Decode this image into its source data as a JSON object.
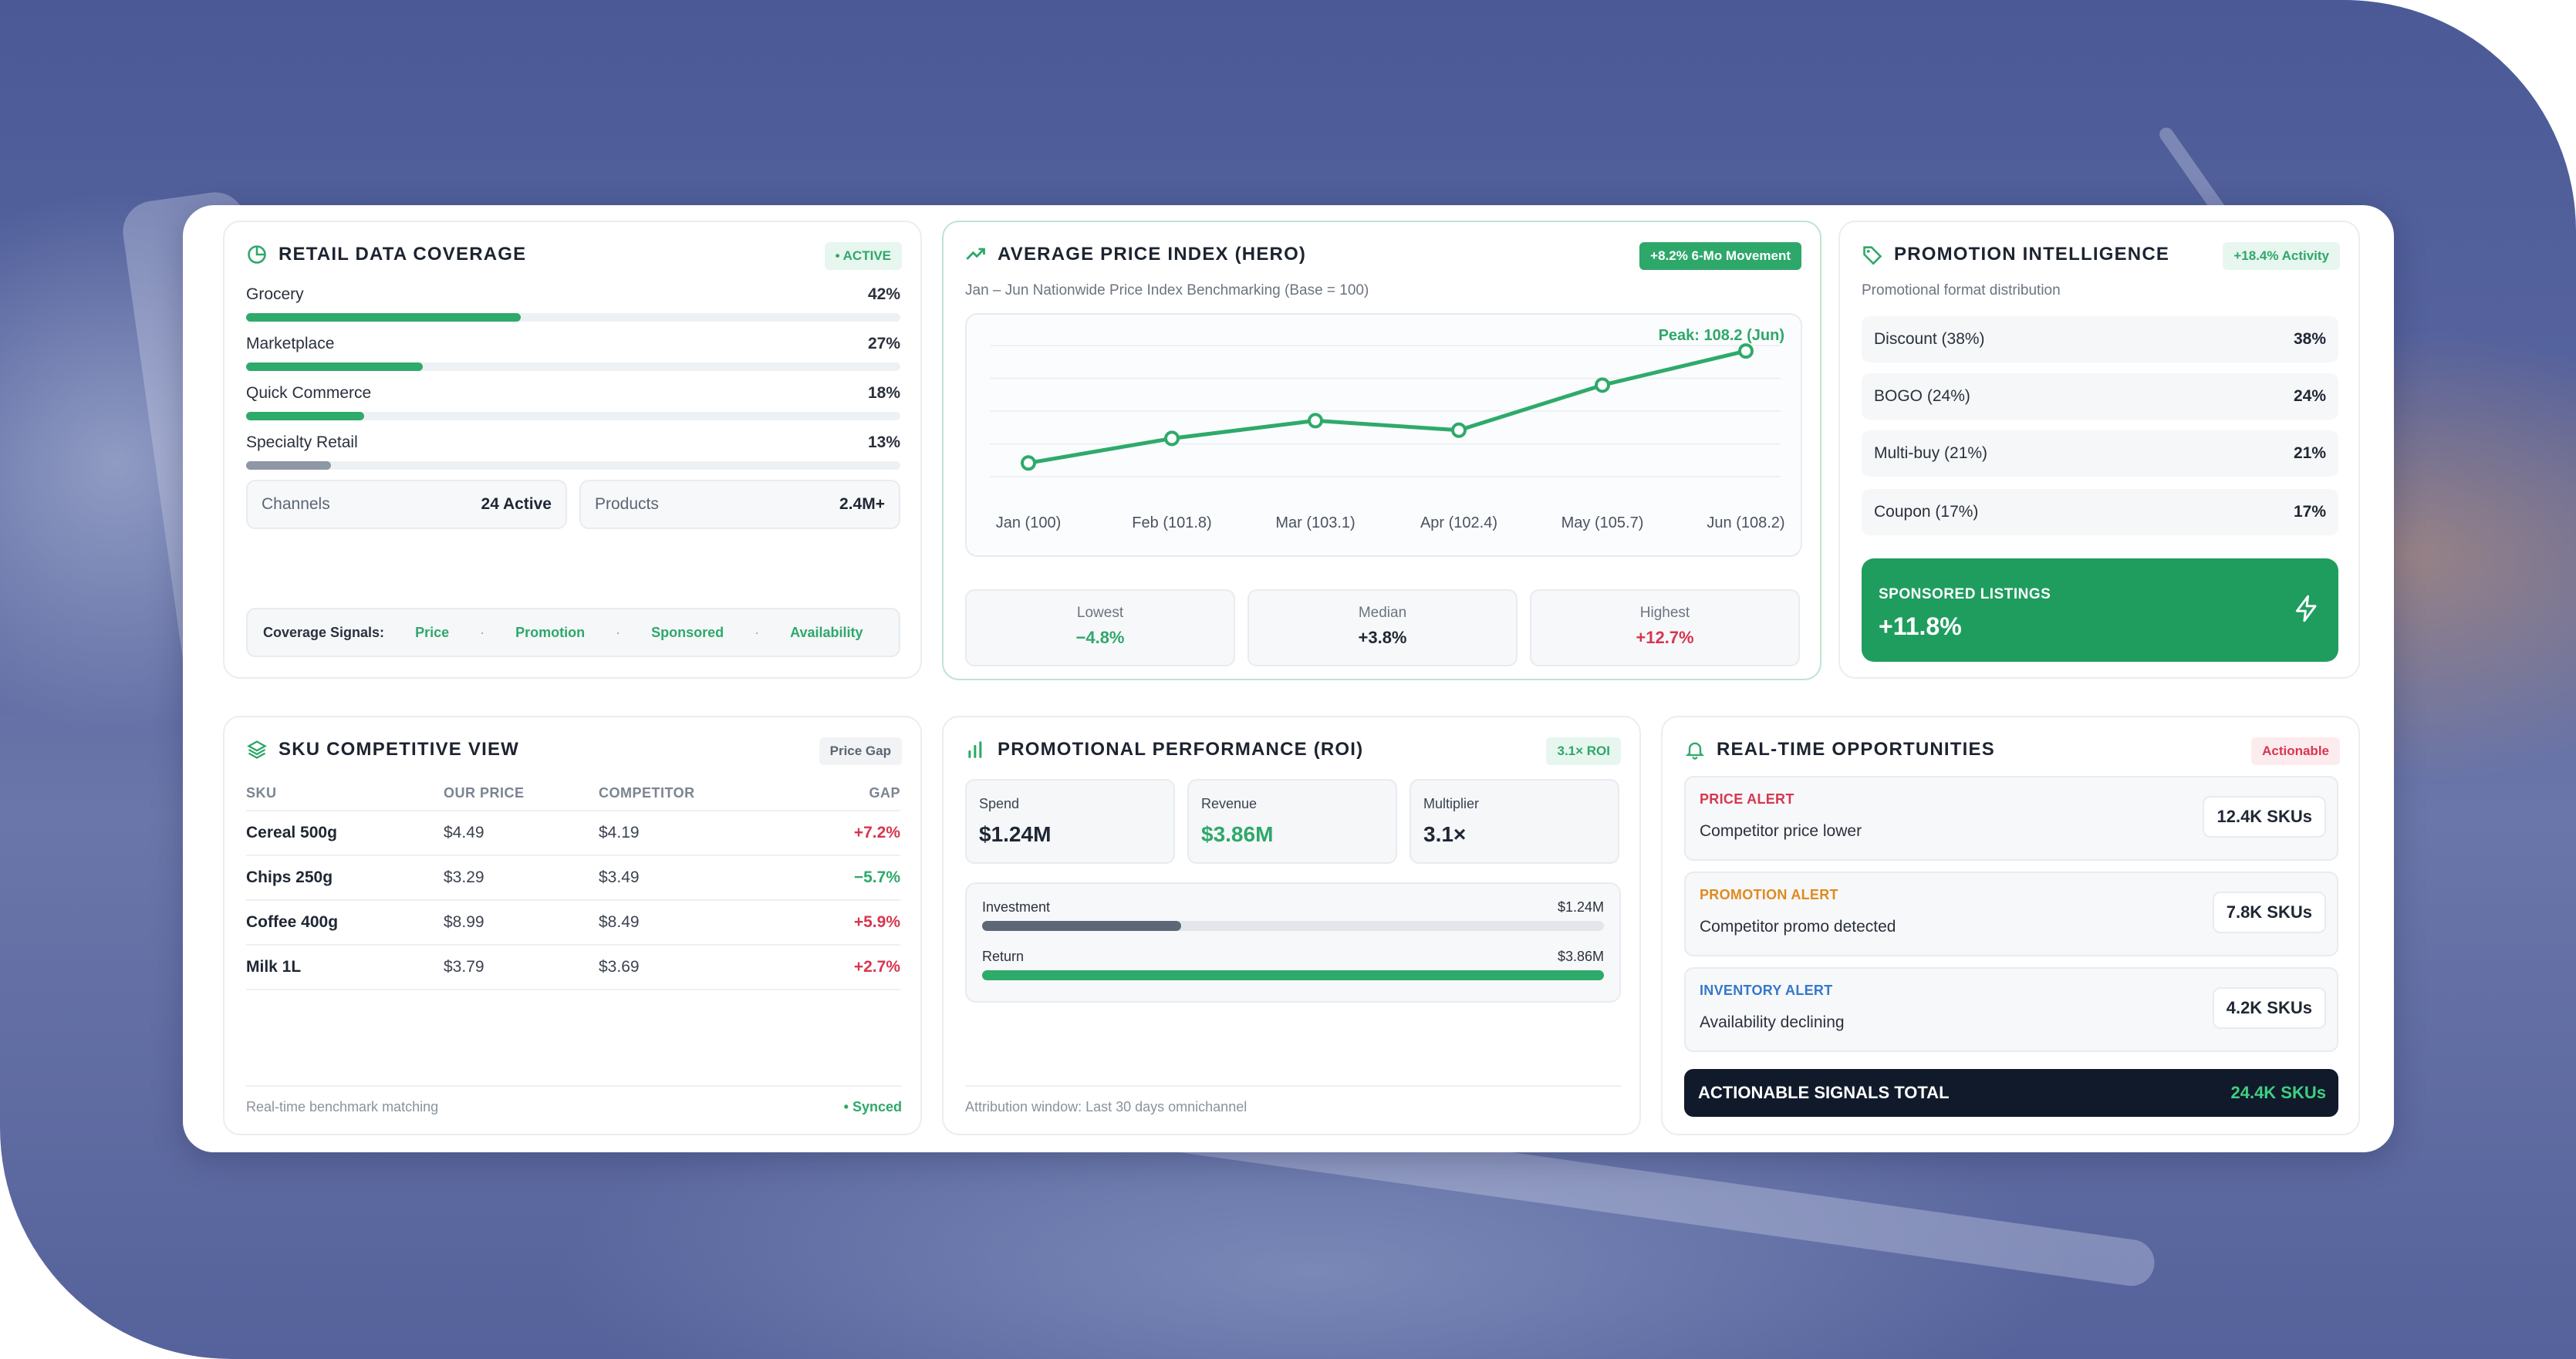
{
  "colors": {
    "accent_green": "#2ea86a",
    "alert_red": "#d7364f",
    "alert_orange": "#e08a1e",
    "alert_blue": "#3578c9",
    "dark": "#111a2b"
  },
  "coverage": {
    "title": "RETAIL DATA COVERAGE",
    "badge": "• ACTIVE",
    "rows": [
      {
        "label": "Grocery",
        "value": "42%",
        "fraction": 0.42
      },
      {
        "label": "Marketplace",
        "value": "27%",
        "fraction": 0.27
      },
      {
        "label": "Quick Commerce",
        "value": "18%",
        "fraction": 0.18
      },
      {
        "label": "Specialty Retail",
        "value": "13%",
        "fraction": 0.13
      }
    ],
    "channels_label": "Channels",
    "channels_value": "24 Active",
    "products_label": "Products",
    "products_value": "2.4M+",
    "signals_label": "Coverage Signals:",
    "signals": [
      "Price",
      "Promotion",
      "Sponsored",
      "Availability"
    ]
  },
  "hero": {
    "title": "AVERAGE PRICE INDEX (HERO)",
    "badge": "+8.2% 6-Mo Movement",
    "subtitle": "Jan – Jun Nationwide Price Index Benchmarking (Base = 100)",
    "peak_label": "Peak: 108.2 (Jun)",
    "stats": [
      {
        "label": "Lowest",
        "value": "−4.8%",
        "tone": "green"
      },
      {
        "label": "Median",
        "value": "+3.8%",
        "tone": "dark"
      },
      {
        "label": "Highest",
        "value": "+12.7%",
        "tone": "red"
      }
    ]
  },
  "chart_data": {
    "type": "line",
    "categories": [
      "Jan (100)",
      "Feb (101.8)",
      "Mar (103.1)",
      "Apr (102.4)",
      "May (105.7)",
      "Jun (108.2)"
    ],
    "values": [
      100,
      101.8,
      103.1,
      102.4,
      105.7,
      108.2
    ],
    "title": "",
    "xlabel": "",
    "ylabel": "",
    "grid": true
  },
  "promo": {
    "title": "PROMOTION INTELLIGENCE",
    "badge": "+18.4% Activity",
    "subtitle": "Promotional format distribution",
    "rows": [
      {
        "label": "Discount (38%)",
        "value": "38%"
      },
      {
        "label": "BOGO (24%)",
        "value": "24%"
      },
      {
        "label": "Multi-buy (21%)",
        "value": "21%"
      },
      {
        "label": "Coupon (17%)",
        "value": "17%"
      }
    ],
    "sponsored_label": "SPONSORED LISTINGS",
    "sponsored_value": "+11.8%"
  },
  "sku": {
    "title": "SKU COMPETITIVE VIEW",
    "badge": "Price Gap",
    "headers": [
      "SKU",
      "OUR PRICE",
      "COMPETITOR",
      "GAP"
    ],
    "rows": [
      {
        "sku": "Cereal 500g",
        "our": "$4.49",
        "comp": "$4.19",
        "gap": "+7.2%",
        "dir": "pos"
      },
      {
        "sku": "Chips 250g",
        "our": "$3.29",
        "comp": "$3.49",
        "gap": "−5.7%",
        "dir": "neg"
      },
      {
        "sku": "Coffee 400g",
        "our": "$8.99",
        "comp": "$8.49",
        "gap": "+5.9%",
        "dir": "pos"
      },
      {
        "sku": "Milk 1L",
        "our": "$3.79",
        "comp": "$3.69",
        "gap": "+2.7%",
        "dir": "pos"
      }
    ],
    "footer": "Real-time benchmark matching",
    "footer_status": "• Synced"
  },
  "roi": {
    "title": "PROMOTIONAL PERFORMANCE (ROI)",
    "badge": "3.1× ROI",
    "boxes": [
      {
        "label": "Spend",
        "value": "$1.24M",
        "tone": "dark"
      },
      {
        "label": "Revenue",
        "value": "$3.86M",
        "tone": "green"
      },
      {
        "label": "Multiplier",
        "value": "3.1×",
        "tone": "dark"
      }
    ],
    "investment_label": "Investment",
    "investment_value": "$1.24M",
    "investment_fraction": 0.32,
    "return_label": "Return",
    "return_value": "$3.86M",
    "return_fraction": 1.0,
    "footer": "Attribution window: Last 30 days omnichannel"
  },
  "opps": {
    "title": "REAL-TIME OPPORTUNITIES",
    "badge": "Actionable",
    "items": [
      {
        "type": "PRICE ALERT",
        "desc": "Competitor price lower",
        "count": "12.4K SKUs",
        "tone": "red"
      },
      {
        "type": "PROMOTION ALERT",
        "desc": "Competitor promo detected",
        "count": "7.8K SKUs",
        "tone": "orange"
      },
      {
        "type": "INVENTORY ALERT",
        "desc": "Availability declining",
        "count": "4.2K SKUs",
        "tone": "blue"
      }
    ],
    "total_label": "ACTIONABLE SIGNALS TOTAL",
    "total_value": "24.4K SKUs"
  }
}
